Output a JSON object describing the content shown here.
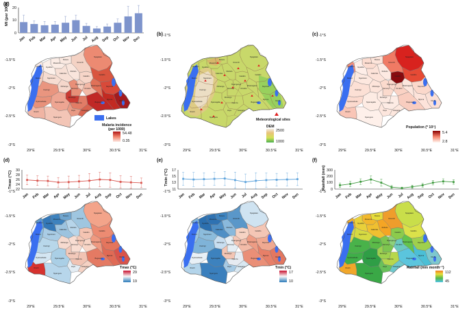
{
  "months": [
    "Jan",
    "Feb",
    "Mar",
    "Apr",
    "May",
    "Jun",
    "Jul",
    "Aug",
    "Sep",
    "Oct",
    "Nov",
    "Dec"
  ],
  "lon_ticks": [
    "29°E",
    "29.5°E",
    "30°E",
    "30.5°E",
    "31°E"
  ],
  "lat_ticks": [
    "-1°S",
    "-1.5°S",
    "-2°S",
    "-2.5°S",
    "-3°S"
  ],
  "colors": {
    "lake": "#3a6ff0",
    "border": "#777777",
    "bar": "#7e94cc",
    "tmax_line": "#d9564f",
    "tmin_line": "#5fa4dc",
    "rain_line": "#3f9a3f"
  },
  "panels": {
    "a": {
      "label": "(a)",
      "lakes_label": "Lakes",
      "legend_title_1": "Malaria incidence",
      "legend_title_2": "(per 1000)",
      "legend_max": "54.48",
      "legend_min": "0.35"
    },
    "b": {
      "label": "(b)",
      "sites_label": "Meteorological sites",
      "dem_title": "DEM",
      "dem_max": "2500",
      "dem_min": "1000"
    },
    "c": {
      "label": "(c)",
      "legend_title": "Population (* 10⁵)",
      "legend_max": "5.4",
      "legend_min": "2.8"
    },
    "d": {
      "label": "(d)",
      "legend_title": "Tmax (°C)",
      "legend_max": "29",
      "legend_min": "19"
    },
    "e": {
      "label": "(e)",
      "legend_title": "Tmin (°C)",
      "legend_max": "17",
      "legend_min": "10"
    },
    "f": {
      "label": "(f)",
      "legend_title": "Rainfall (mm month⁻¹)",
      "legend_max": "112",
      "legend_min": "45"
    }
  },
  "district_names": [
    "Nyagatare",
    "Gatsibo",
    "Kayonza",
    "Ngoma",
    "Kirehe",
    "Bugesera",
    "Rwamagana",
    "Gicumbi",
    "Burera",
    "Musanze",
    "Rubavu",
    "Nyabihu",
    "Ngororero",
    "Rutsiro",
    "Karongi",
    "Nyamasheke",
    "Rusizi",
    "Nyamagabe",
    "Nyaruguru",
    "Huye",
    "Gisagara",
    "Nyanza",
    "Ruhango",
    "Muhanga",
    "Kamonyi",
    "Gakenke",
    "Rulindo",
    "Kicukiro",
    "Gasabo",
    "Nyarugenge"
  ],
  "chart_data": [
    {
      "type": "bar",
      "panel": "a",
      "title": "",
      "xlabel": "",
      "ylabel": "MI (per 1000)",
      "categories": [
        "Jan",
        "Feb",
        "Mar",
        "Apr",
        "May",
        "Jun",
        "Jul",
        "Aug",
        "Sep",
        "Oct",
        "Nov",
        "Dec"
      ],
      "values": [
        8.5,
        7,
        6,
        6.5,
        8,
        10,
        5.5,
        3.5,
        5,
        8,
        13,
        15.5
      ],
      "error": [
        5.5,
        2.5,
        3,
        2.5,
        5,
        4,
        2,
        1.5,
        2,
        3,
        8,
        12
      ],
      "ylim": [
        0,
        20
      ],
      "yticks": [
        "0",
        "10",
        "20"
      ]
    },
    {
      "type": "line",
      "panel": "d",
      "title": "",
      "xlabel": "",
      "ylabel": "Tmax (°C)",
      "categories": [
        "Jan",
        "Feb",
        "Mar",
        "Apr",
        "May",
        "Jun",
        "Jul",
        "Aug",
        "Sep",
        "Oct",
        "Nov",
        "Dec"
      ],
      "values": [
        25.8,
        25.5,
        25.4,
        24.8,
        24.9,
        25.2,
        25.5,
        26.0,
        25.8,
        25.0,
        24.8,
        24.6
      ],
      "error": [
        2.0,
        2.0,
        2.0,
        2.0,
        2.5,
        2.5,
        3.0,
        3.0,
        3.0,
        2.5,
        2.5,
        2.0
      ],
      "ylim": [
        22,
        30
      ],
      "yticks": [
        "22",
        "24",
        "26",
        "28",
        "30"
      ]
    },
    {
      "type": "line",
      "panel": "e",
      "title": "",
      "xlabel": "",
      "ylabel": "Tmin (°C)",
      "categories": [
        "Jan",
        "Feb",
        "Mar",
        "Apr",
        "May",
        "Jun",
        "Jul",
        "Aug",
        "Sep",
        "Oct",
        "Nov",
        "Dec"
      ],
      "values": [
        14.2,
        14.0,
        14.1,
        14.2,
        14.3,
        13.8,
        13.2,
        13.6,
        13.8,
        13.9,
        14.0,
        14.1
      ],
      "error": [
        2.0,
        2.2,
        2.0,
        2.0,
        2.2,
        2.5,
        2.5,
        2.5,
        2.2,
        2.0,
        2.0,
        2.0
      ],
      "ylim": [
        11,
        17
      ],
      "yticks": [
        "11",
        "13",
        "15",
        "17"
      ]
    },
    {
      "type": "line",
      "panel": "f",
      "title": "",
      "xlabel": "",
      "ylabel": "Rainfall (mm)",
      "categories": [
        "Jan",
        "Feb",
        "Mar",
        "Apr",
        "May",
        "Jun",
        "Jul",
        "Aug",
        "Sep",
        "Oct",
        "Nov",
        "Dec"
      ],
      "values": [
        60,
        80,
        115,
        150,
        100,
        30,
        15,
        35,
        60,
        100,
        120,
        110
      ],
      "error": [
        35,
        40,
        45,
        55,
        55,
        25,
        15,
        25,
        30,
        35,
        40,
        35
      ],
      "ylim": [
        0,
        300
      ],
      "yticks": [
        "0",
        "100",
        "200",
        "300"
      ]
    }
  ]
}
